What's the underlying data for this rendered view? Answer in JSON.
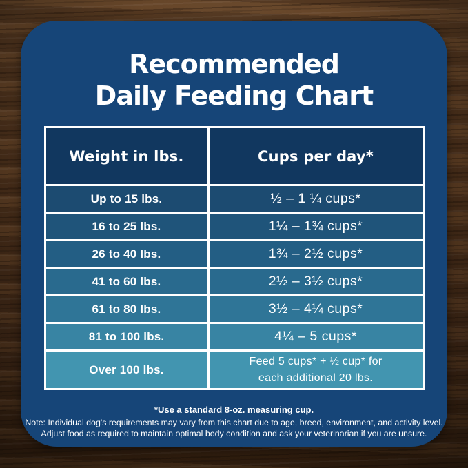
{
  "title": {
    "line1": "Recommended",
    "line2": "Daily Feeding Chart"
  },
  "table": {
    "headers": {
      "weight": "Weight in lbs.",
      "cups": "Cups per day*"
    },
    "rows": [
      {
        "weight": "Up to 15 lbs.",
        "cups": "½ – 1 ¼ cups*"
      },
      {
        "weight": "16 to 25 lbs.",
        "cups": "1¼ – 1¾ cups*"
      },
      {
        "weight": "26 to 40 lbs.",
        "cups": "1¾ – 2½ cups*"
      },
      {
        "weight": "41 to 60 lbs.",
        "cups": "2½ – 3½ cups*"
      },
      {
        "weight": "61 to 80 lbs.",
        "cups": "3½ – 4¼ cups*"
      },
      {
        "weight": "81 to 100 lbs.",
        "cups": "4¼ – 5 cups*"
      },
      {
        "weight": "Over 100 lbs.",
        "cups_line1": "Feed 5 cups* + ½ cup* for",
        "cups_line2": "each additional 20 lbs."
      }
    ]
  },
  "footer": {
    "measuring_note": "*Use a standard 8-oz. measuring cup.",
    "note_line1": "Note: Individual dog's requirements may vary from this chart due to age, breed, environment, and activity level.",
    "note_line2": "Adjust food as required to maintain optimal body condition and ask your veterinarian if you are unsure."
  },
  "colors": {
    "card_bg": "#164578",
    "header_bg": "#11375F",
    "row_bgs": [
      "#1C4B71",
      "#1F547A",
      "#235E84",
      "#296A8E",
      "#2F7597",
      "#3884A3",
      "#4295B0"
    ],
    "table_border": "#FFFFFF",
    "text": "#FFFFFF",
    "wood_base": "#55371F"
  },
  "chart_data": {
    "type": "table",
    "title": "Recommended Daily Feeding Chart",
    "columns": [
      "Weight in lbs.",
      "Cups per day*"
    ],
    "rows": [
      [
        "Up to 15 lbs.",
        "½ – 1 ¼ cups*"
      ],
      [
        "16 to 25 lbs.",
        "1¼ – 1¾ cups*"
      ],
      [
        "26 to 40 lbs.",
        "1¾ – 2½ cups*"
      ],
      [
        "41 to 60 lbs.",
        "2½ – 3½ cups*"
      ],
      [
        "61 to 80 lbs.",
        "3½ – 4¼ cups*"
      ],
      [
        "81 to 100 lbs.",
        "4¼ – 5 cups*"
      ],
      [
        "Over 100 lbs.",
        "Feed 5 cups* + ½ cup* for each additional 20 lbs."
      ]
    ],
    "numeric_series": [
      {
        "name": "cups_min",
        "values": [
          0.5,
          1.25,
          1.75,
          2.5,
          3.5,
          4.25,
          5
        ]
      },
      {
        "name": "cups_max",
        "values": [
          1.25,
          1.75,
          2.5,
          3.5,
          4.25,
          5,
          null
        ]
      }
    ],
    "weight_ranges_lbs": [
      [
        0,
        15
      ],
      [
        16,
        25
      ],
      [
        26,
        40
      ],
      [
        41,
        60
      ],
      [
        61,
        80
      ],
      [
        81,
        100
      ],
      [
        100,
        null
      ]
    ],
    "annotations": [
      "*Use a standard 8-oz. measuring cup.",
      "Over 100 lbs: feed 5 cups plus ½ cup for each additional 20 lbs."
    ]
  }
}
